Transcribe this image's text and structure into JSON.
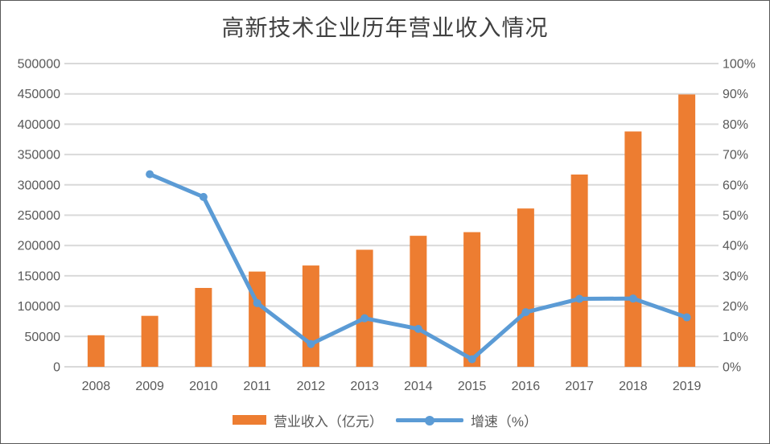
{
  "title": "高新技术企业历年营业收入情况",
  "legend": {
    "bar_label": "营业收入（亿元）",
    "line_label": "增速（%）"
  },
  "colors": {
    "bar": "#ED7D31",
    "line": "#5B9BD5",
    "gridline": "#D9D9D9",
    "axis_text": "#595959",
    "title_text": "#404040"
  },
  "chart_data": {
    "type": "bar+line combo",
    "title": "高新技术企业历年营业收入情况",
    "categories": [
      "2008",
      "2009",
      "2010",
      "2011",
      "2012",
      "2013",
      "2014",
      "2015",
      "2016",
      "2017",
      "2018",
      "2019"
    ],
    "series": [
      {
        "name": "营业收入（亿元）",
        "type": "bar",
        "axis": "left",
        "values": [
          52000,
          84000,
          130000,
          157000,
          167000,
          193000,
          216000,
          222000,
          261000,
          317000,
          388000,
          449000
        ]
      },
      {
        "name": "增速（%）",
        "type": "line",
        "axis": "right",
        "values": [
          null,
          63.5,
          56,
          21,
          7.5,
          16,
          12.5,
          2.5,
          18,
          22.4,
          22.5,
          16.3
        ]
      }
    ],
    "left_axis": {
      "min": 0,
      "max": 500000,
      "step": 50000,
      "tick_labels": [
        "0",
        "50000",
        "100000",
        "150000",
        "200000",
        "250000",
        "300000",
        "350000",
        "400000",
        "450000",
        "500000"
      ]
    },
    "right_axis": {
      "min": 0,
      "max": 100,
      "step": 10,
      "tick_labels": [
        "0%",
        "10%",
        "20%",
        "30%",
        "40%",
        "50%",
        "60%",
        "70%",
        "80%",
        "90%",
        "100%"
      ]
    },
    "grid": true,
    "legend_position": "bottom"
  }
}
